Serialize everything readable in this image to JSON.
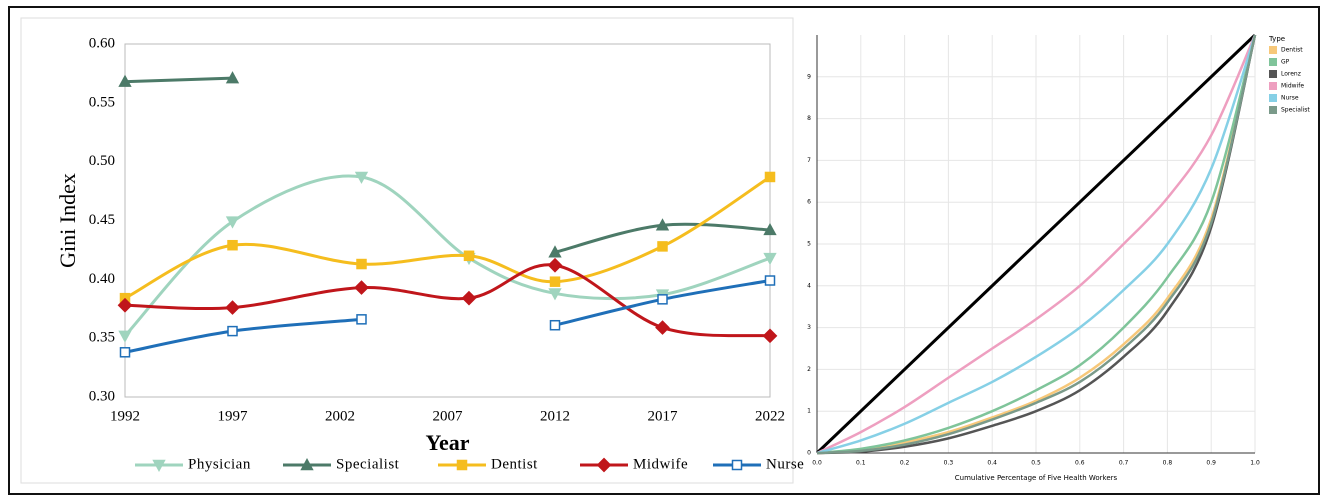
{
  "chart_data": [
    {
      "type": "line",
      "y_label": "Gini Index",
      "x_label": "Year",
      "smooth": true,
      "legend": "bottom",
      "grid": false,
      "x": [
        1992,
        1997,
        2003,
        2008,
        2012,
        2017,
        2022
      ],
      "xlim": [
        1992,
        2022
      ],
      "xticks": [
        1992,
        1997,
        2002,
        2007,
        2012,
        2017,
        2022
      ],
      "ylim": [
        0.3,
        0.6
      ],
      "yticks": [
        {
          "value": 0.3,
          "label": "0.30"
        },
        {
          "value": 0.35,
          "label": "0.35"
        },
        {
          "value": 0.4,
          "label": "0.40"
        },
        {
          "value": 0.45,
          "label": "0.45"
        },
        {
          "value": 0.5,
          "label": "0.50"
        },
        {
          "value": 0.55,
          "label": "0.55"
        },
        {
          "value": 0.6,
          "label": "0.60"
        }
      ],
      "series": [
        {
          "name": "Physician",
          "color": "#9fd4be",
          "marker": "triangle-down",
          "values": [
            0.352,
            0.449,
            0.487,
            0.418,
            0.388,
            0.387,
            0.418
          ]
        },
        {
          "name": "Specialist",
          "color": "#4c7a68",
          "marker": "triangle",
          "values": [
            0.568,
            0.571,
            null,
            null,
            0.423,
            0.446,
            0.442
          ]
        },
        {
          "name": "Dentist",
          "color": "#f5bd1e",
          "marker": "square",
          "values": [
            0.384,
            0.429,
            0.413,
            0.42,
            0.398,
            0.428,
            0.487
          ]
        },
        {
          "name": "Midwife",
          "color": "#c0161b",
          "marker": "diamond",
          "values": [
            0.378,
            0.376,
            0.393,
            0.384,
            0.412,
            0.359,
            0.352
          ]
        },
        {
          "name": "Nurse",
          "color": "#1f6fb8",
          "marker": "square-open",
          "values": [
            0.338,
            0.356,
            0.366,
            null,
            0.361,
            0.383,
            0.399
          ]
        }
      ]
    },
    {
      "type": "line",
      "x_label": "Cumulative Percentage of Five Health Workers",
      "legend_title": "Type",
      "legend": "right",
      "grid": true,
      "smooth": true,
      "x": [
        0,
        0.1,
        0.2,
        0.3,
        0.4,
        0.5,
        0.6,
        0.7,
        0.8,
        0.9,
        1
      ],
      "xlim": [
        0,
        1
      ],
      "xticks": [
        {
          "value": 0,
          "label": "0.0"
        },
        {
          "value": 0.1,
          "label": "0.1"
        },
        {
          "value": 0.2,
          "label": "0.2"
        },
        {
          "value": 0.3,
          "label": "0.3"
        },
        {
          "value": 0.4,
          "label": "0.4"
        },
        {
          "value": 0.5,
          "label": "0.5"
        },
        {
          "value": 0.6,
          "label": "0.6"
        },
        {
          "value": 0.7,
          "label": "0.7"
        },
        {
          "value": 0.8,
          "label": "0.8"
        },
        {
          "value": 0.9,
          "label": "0.9"
        },
        {
          "value": 1,
          "label": "1.0"
        }
      ],
      "ylim": [
        0,
        10
      ],
      "yticks": [
        0,
        1,
        2,
        3,
        4,
        5,
        6,
        7,
        8,
        9
      ],
      "reference_line": {
        "x": [
          0,
          1
        ],
        "values": [
          0,
          10
        ],
        "color": "#000000"
      },
      "series": [
        {
          "name": "Dentist",
          "color": "#f7c87a",
          "values": [
            0,
            0.05,
            0.25,
            0.5,
            0.85,
            1.25,
            1.8,
            2.6,
            3.7,
            5.6,
            10
          ]
        },
        {
          "name": "GP",
          "color": "#7fc49a",
          "values": [
            0,
            0.1,
            0.3,
            0.6,
            1.0,
            1.5,
            2.1,
            3.0,
            4.2,
            6.0,
            10
          ]
        },
        {
          "name": "Lorenz",
          "color": "#555555",
          "values": [
            0,
            0.03,
            0.15,
            0.35,
            0.65,
            1.0,
            1.5,
            2.3,
            3.4,
            5.4,
            10
          ]
        },
        {
          "name": "Midwife",
          "color": "#ee9fc0",
          "values": [
            0,
            0.5,
            1.1,
            1.8,
            2.5,
            3.2,
            4.0,
            5.0,
            6.1,
            7.6,
            10
          ]
        },
        {
          "name": "Nurse",
          "color": "#86d0e6",
          "values": [
            0,
            0.3,
            0.7,
            1.2,
            1.7,
            2.3,
            3.0,
            3.9,
            5.0,
            6.8,
            10
          ]
        },
        {
          "name": "Specialist",
          "color": "#7a9a8a",
          "values": [
            0,
            0.05,
            0.2,
            0.45,
            0.8,
            1.2,
            1.7,
            2.5,
            3.6,
            5.5,
            10
          ]
        }
      ]
    }
  ]
}
